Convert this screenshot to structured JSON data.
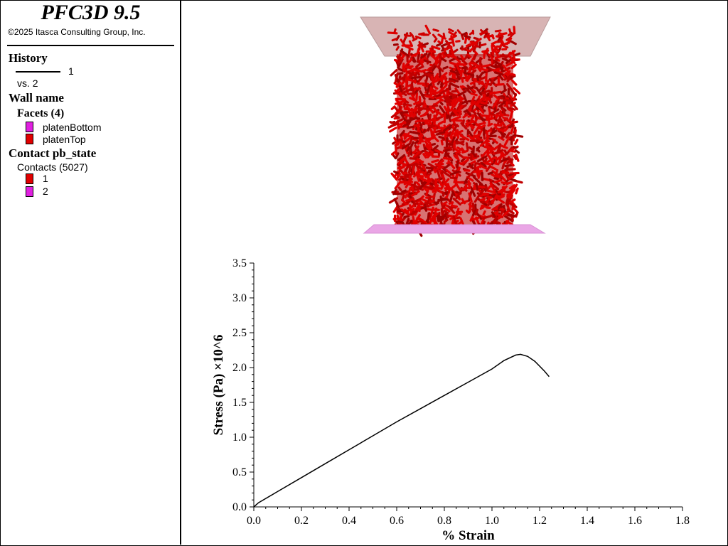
{
  "app": {
    "title": "PFC3D 9.5",
    "copyright": "©2025 Itasca Consulting Group, Inc."
  },
  "legend": {
    "history": {
      "heading": "History",
      "series_label": "1",
      "vs_label": "vs. 2"
    },
    "wall": {
      "heading": "Wall name",
      "subheading": "Facets (4)",
      "items": [
        {
          "label": "platenBottom",
          "color": "#e020e0"
        },
        {
          "label": "platenTop",
          "color": "#e00000"
        }
      ]
    },
    "contact": {
      "heading": "Contact pb_state",
      "subheading": "Contacts (5027)",
      "items": [
        {
          "label": "1",
          "color": "#e00000"
        },
        {
          "label": "2",
          "color": "#e020e0"
        }
      ]
    }
  },
  "colors": {
    "contacts": "#d40000",
    "top_platen": "#d8b4b4",
    "bottom_platen": "#eaa6e6",
    "curve": "#000000"
  },
  "chart_data": {
    "type": "line",
    "xlabel": "% Strain",
    "ylabel": "Stress (Pa) ×10^6",
    "xlim": [
      0,
      1.8
    ],
    "ylim": [
      0,
      3.5
    ],
    "x_ticks": [
      "0.0",
      "0.2",
      "0.4",
      "0.6",
      "0.8",
      "1.0",
      "1.2",
      "1.4",
      "1.6",
      "1.8"
    ],
    "y_ticks": [
      "0.0",
      "0.5",
      "1.0",
      "1.5",
      "2.0",
      "2.5",
      "3.0",
      "3.5"
    ],
    "grid": false,
    "series": [
      {
        "x": [
          0.0,
          0.02,
          0.1,
          0.2,
          0.3,
          0.4,
          0.5,
          0.6,
          0.7,
          0.8,
          0.9,
          1.0,
          1.05,
          1.1,
          1.12,
          1.15,
          1.18,
          1.2,
          1.22,
          1.24
        ],
        "y": [
          0.0,
          0.06,
          0.22,
          0.42,
          0.62,
          0.82,
          1.02,
          1.22,
          1.41,
          1.6,
          1.79,
          1.98,
          2.1,
          2.18,
          2.19,
          2.16,
          2.09,
          2.02,
          1.95,
          1.87
        ]
      }
    ]
  }
}
